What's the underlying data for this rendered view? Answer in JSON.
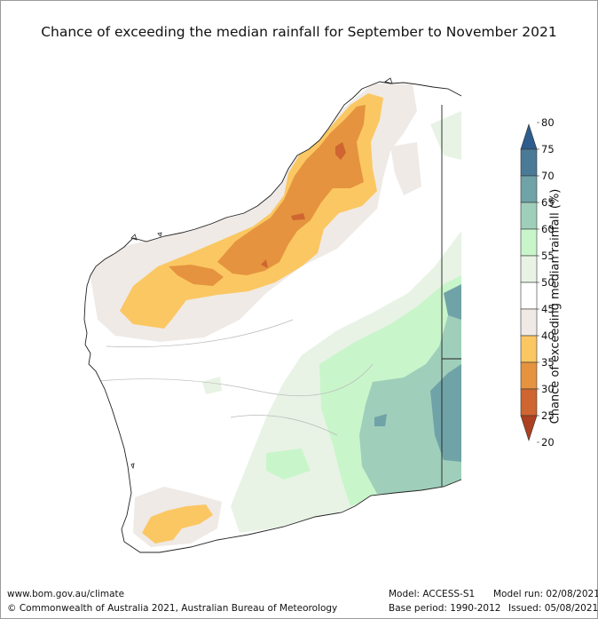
{
  "title": "Chance of exceeding the median rainfall for September to November 2021",
  "colorbar": {
    "label": "Chance of exceeding median rainfall (%)",
    "ticks": [
      "80",
      "75",
      "70",
      "65",
      "60",
      "55",
      "50",
      "45",
      "40",
      "35",
      "30",
      "25",
      "20"
    ],
    "colors": {
      "above_75": "#2e5c8d",
      "c70_75": "#4a7a96",
      "c65_70": "#6fa3a8",
      "c60_65": "#9fcfba",
      "c55_60": "#c9f5cb",
      "c50_55": "#e8f3e5",
      "c45_50": "#ffffff",
      "c40_45": "#efeae6",
      "c35_40": "#fbc762",
      "c30_35": "#e5933f",
      "c25_30": "#cf6530",
      "below_25": "#ad4020"
    }
  },
  "footer": {
    "website": "www.bom.gov.au/climate",
    "copyright": "© Commonwealth of Australia 2021, Australian Bureau of Meteorology",
    "model": "Model: ACCESS-S1",
    "model_run": "Model run: 02/08/2021",
    "base_period": "Base period: 1990-2012",
    "issued": "Issued: 05/08/2021"
  }
}
